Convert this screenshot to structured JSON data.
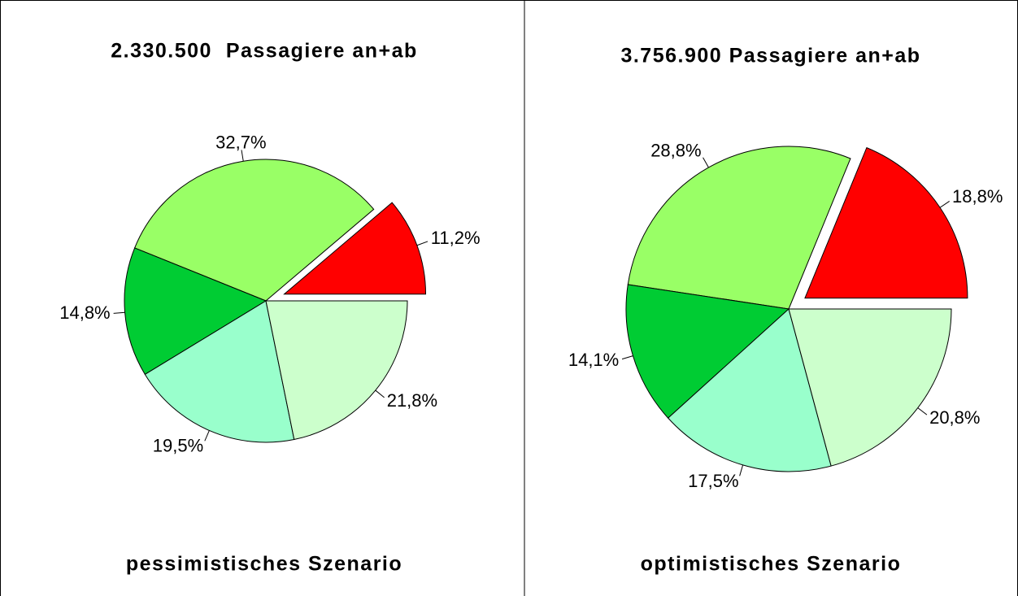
{
  "chart_data": [
    {
      "type": "pie",
      "title": "2.330.500  Passagiere an+ab",
      "subtitle": "pessimistisches Szenario",
      "values": [
        11.2,
        32.7,
        14.8,
        19.5,
        21.8
      ],
      "value_labels": [
        "11,2%",
        "32,7%",
        "14,8%",
        "19,5%",
        "21,8%"
      ],
      "colors": [
        "#ff0000",
        "#99ff66",
        "#00cc33",
        "#99ffcc",
        "#ccffcc"
      ]
    },
    {
      "type": "pie",
      "title": "3.756.900 Passagiere an+ab",
      "subtitle": "optimistisches Szenario",
      "values": [
        18.8,
        28.8,
        14.1,
        17.5,
        20.8
      ],
      "value_labels": [
        "18,8%",
        "28,8%",
        "14,1%",
        "17,5%",
        "20,8%"
      ],
      "colors": [
        "#ff0000",
        "#99ff66",
        "#00cc33",
        "#99ffcc",
        "#ccffcc"
      ]
    }
  ]
}
